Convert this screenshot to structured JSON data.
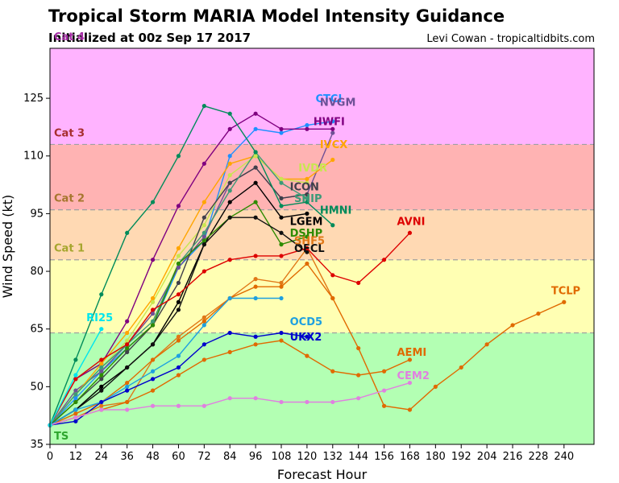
{
  "header": {
    "title": "Tropical Storm MARIA Model Intensity Guidance",
    "subtitle": "Initialized at 00z Sep 17 2017",
    "credit": "Levi Cowan - tropicaltidbits.com"
  },
  "chart_data": {
    "type": "line",
    "title": "Tropical Storm MARIA Model Intensity Guidance",
    "xlabel": "Forecast Hour",
    "ylabel": "Wind Speed (kt)",
    "xlim": [
      0,
      254
    ],
    "ylim": [
      35,
      138
    ],
    "xticks": [
      0,
      12,
      24,
      36,
      48,
      60,
      72,
      84,
      96,
      108,
      120,
      132,
      144,
      156,
      168,
      180,
      192,
      204,
      216,
      228,
      240
    ],
    "yticks": [
      35,
      50,
      65,
      80,
      95,
      110,
      125
    ],
    "bands": [
      {
        "name": "TS",
        "from": 35,
        "to": 64,
        "color": "#b3ffb3",
        "label_color": "#2ea62e"
      },
      {
        "name": "Cat 1",
        "from": 64,
        "to": 83,
        "color": "#ffffb3",
        "label_color": "#a6a62e"
      },
      {
        "name": "Cat 2",
        "from": 83,
        "to": 96,
        "color": "#ffd9b3",
        "label_color": "#a6762e"
      },
      {
        "name": "Cat 3",
        "from": 96,
        "to": 113,
        "color": "#ffb3b3",
        "label_color": "#a62e2e"
      },
      {
        "name": "Cat 4",
        "from": 113,
        "to": 138,
        "color": "#ffb3ff",
        "label_color": "#a62ea6"
      }
    ],
    "series": [
      {
        "name": "CTCI",
        "color": "#1e90ff",
        "x": [
          0,
          12,
          24,
          36,
          48,
          60,
          72,
          84,
          96,
          108,
          120,
          132
        ],
        "y": [
          40,
          47,
          54,
          60,
          66,
          81,
          88,
          110,
          117,
          116,
          118,
          119
        ],
        "label_at": [
          124,
          124
        ]
      },
      {
        "name": "NVGM",
        "color": "#6e5096",
        "x": [
          0,
          12,
          24,
          36,
          48,
          60,
          72,
          84,
          96,
          108,
          120,
          132
        ],
        "y": [
          40,
          49,
          54,
          61,
          69,
          81,
          89,
          103,
          107,
          99,
          100,
          116
        ],
        "label_at": [
          126,
          123
        ]
      },
      {
        "name": "HWFI",
        "color": "#800080",
        "x": [
          0,
          12,
          24,
          36,
          48,
          60,
          72,
          84,
          96,
          108,
          120,
          132
        ],
        "y": [
          40,
          52,
          56,
          67,
          83,
          97,
          108,
          117,
          121,
          117,
          117,
          117
        ],
        "label_at": [
          123,
          118
        ]
      },
      {
        "name": "IVCX",
        "color": "#ffa500",
        "x": [
          0,
          12,
          24,
          36,
          48,
          60,
          72,
          84,
          96,
          108,
          120,
          132
        ],
        "y": [
          40,
          48,
          56,
          64,
          73,
          86,
          98,
          108,
          110,
          104,
          104,
          109
        ],
        "label_at": [
          126,
          112
        ]
      },
      {
        "name": "IVDR",
        "color": "#c8e650",
        "x": [
          0,
          12,
          24,
          36,
          48,
          60,
          72,
          84,
          96,
          108,
          120
        ],
        "y": [
          40,
          48,
          55,
          62,
          72,
          84,
          92,
          105,
          110,
          104,
          103
        ],
        "label_at": [
          116,
          106
        ]
      },
      {
        "name": "ICON",
        "color": "#40404a",
        "x": [
          0,
          12,
          24,
          36,
          48,
          60,
          72,
          84,
          96,
          108,
          120
        ],
        "y": [
          40,
          46,
          52,
          59,
          66,
          77,
          94,
          103,
          107,
          99,
          100
        ],
        "label_at": [
          112,
          101
        ]
      },
      {
        "name": "SHIP",
        "color": "#3c9a78",
        "x": [
          0,
          12,
          24,
          36,
          48,
          60,
          72,
          84,
          96,
          108,
          120
        ],
        "y": [
          40,
          48,
          55,
          61,
          67,
          82,
          90,
          101,
          111,
          103,
          99
        ],
        "label_at": [
          114,
          98
        ]
      },
      {
        "name": "LGEM",
        "color": "#000000",
        "x": [
          0,
          12,
          24,
          36,
          48,
          60,
          72,
          84,
          96,
          108,
          120
        ],
        "y": [
          40,
          44,
          50,
          55,
          61,
          72,
          87,
          98,
          103,
          94,
          95
        ],
        "label_at": [
          112,
          92
        ]
      },
      {
        "name": "HMNI",
        "color": "#008b5a",
        "x": [
          0,
          12,
          24,
          36,
          48,
          60,
          72,
          84,
          96,
          108,
          120,
          132
        ],
        "y": [
          40,
          57,
          74,
          90,
          98,
          110,
          123,
          121,
          111,
          97,
          98,
          92
        ],
        "label_at": [
          126,
          95
        ]
      },
      {
        "name": "DSHP",
        "color": "#2e8b00",
        "x": [
          0,
          12,
          24,
          36,
          48,
          60,
          72,
          84,
          96,
          108,
          120
        ],
        "y": [
          40,
          46,
          53,
          60,
          66,
          82,
          88,
          94,
          98,
          87,
          89
        ],
        "label_at": [
          112,
          89
        ]
      },
      {
        "name": "OFCL",
        "color": "#101010",
        "x": [
          0,
          12,
          24,
          36,
          48,
          60,
          72,
          84,
          96,
          108,
          120
        ],
        "y": [
          40,
          44,
          49,
          55,
          61,
          70,
          87,
          94,
          94,
          90,
          85
        ],
        "label_at": [
          114,
          85
        ]
      },
      {
        "name": "SHF5",
        "color": "#e07818",
        "x": [
          0,
          12,
          24,
          36,
          48,
          60,
          72,
          84,
          96,
          108,
          120,
          132
        ],
        "y": [
          40,
          42,
          45,
          46,
          57,
          63,
          68,
          73,
          78,
          77,
          86,
          73
        ],
        "label_at": [
          114,
          87
        ]
      },
      {
        "name": "AVNI",
        "color": "#dd0000",
        "x": [
          0,
          12,
          24,
          36,
          48,
          60,
          72,
          84,
          96,
          108,
          120,
          132,
          144,
          156,
          168
        ],
        "y": [
          40,
          52,
          57,
          61,
          70,
          74,
          80,
          83,
          84,
          84,
          86,
          79,
          77,
          83,
          90
        ],
        "label_at": [
          162,
          92
        ]
      },
      {
        "name": "TCLP",
        "color": "#e06a00",
        "x": [
          0,
          12,
          24,
          36,
          48,
          60,
          72,
          84,
          96,
          108,
          120,
          132,
          144,
          156,
          168,
          180,
          192,
          204,
          216,
          228,
          240
        ],
        "y": [
          40,
          43,
          46,
          51,
          57,
          62,
          67,
          73,
          76,
          76,
          82,
          73,
          60,
          45,
          44,
          50,
          55,
          61,
          66,
          69,
          72
        ],
        "label_at": [
          234,
          74
        ]
      },
      {
        "name": "OCD5",
        "color": "#1ea0e0",
        "x": [
          0,
          12,
          24,
          36,
          48,
          60,
          72,
          84,
          96,
          108
        ],
        "y": [
          40,
          44,
          46,
          50,
          54,
          58,
          66,
          73,
          73,
          73
        ],
        "label_at": [
          112,
          66
        ]
      },
      {
        "name": "UKX2",
        "color": "#0000cc",
        "x": [
          0,
          12,
          24,
          36,
          48,
          60,
          72,
          84,
          96,
          108,
          120
        ],
        "y": [
          40,
          41,
          46,
          49,
          52,
          55,
          61,
          64,
          63,
          64,
          63
        ],
        "label_at": [
          112,
          62
        ]
      },
      {
        "name": "AEMI",
        "color": "#e06a00",
        "x": [
          0,
          12,
          24,
          36,
          48,
          60,
          72,
          84,
          96,
          108,
          120,
          132,
          144,
          156,
          168
        ],
        "y": [
          40,
          42,
          44,
          46,
          49,
          53,
          57,
          59,
          61,
          62,
          58,
          54,
          53,
          54,
          57
        ],
        "label_at": [
          162,
          58
        ]
      },
      {
        "name": "CEM2",
        "color": "#e080e0",
        "x": [
          0,
          12,
          24,
          36,
          48,
          60,
          72,
          84,
          96,
          108,
          120,
          132,
          144,
          156,
          168
        ],
        "y": [
          40,
          42,
          44,
          44,
          45,
          45,
          45,
          47,
          47,
          46,
          46,
          46,
          47,
          49,
          51
        ],
        "label_at": [
          162,
          52
        ]
      },
      {
        "name": "RI25",
        "color": "#00e5ee",
        "x": [
          0,
          12,
          24
        ],
        "y": [
          40,
          53,
          65
        ],
        "label_at": [
          17,
          67
        ]
      }
    ]
  }
}
